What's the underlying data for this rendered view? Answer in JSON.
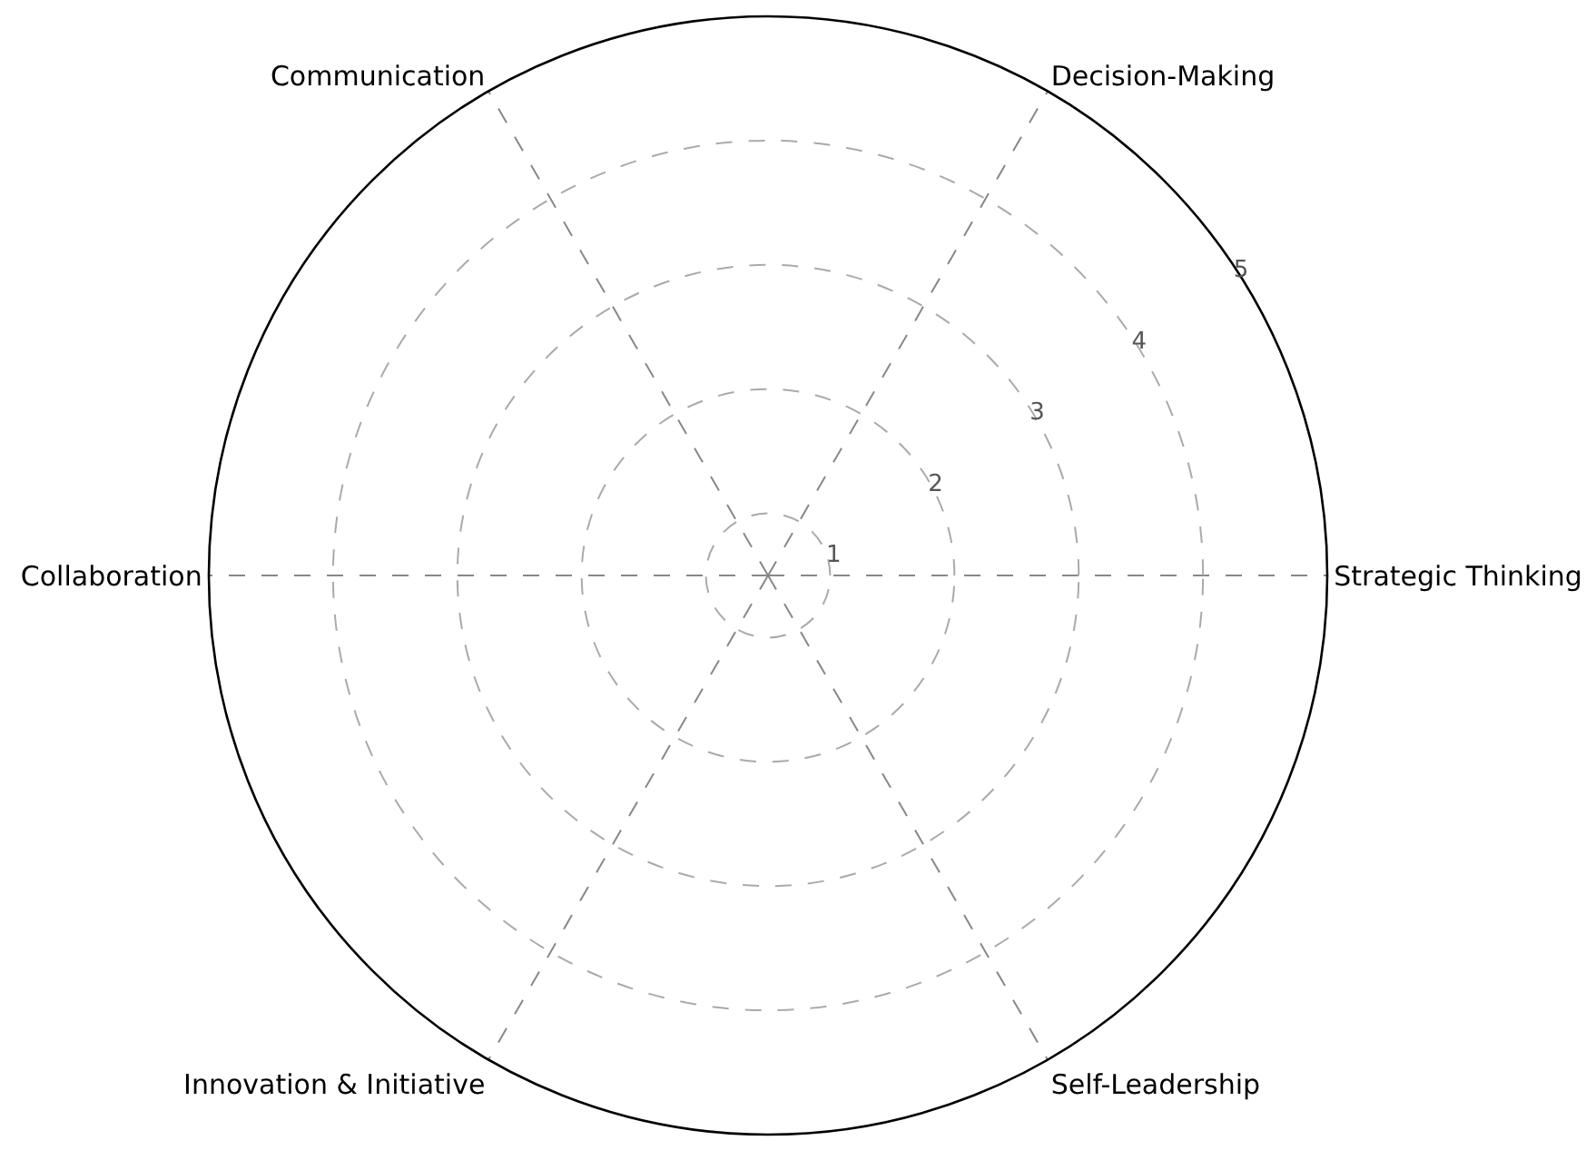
{
  "chart_data": {
    "type": "radar",
    "categories": [
      "Decision-Making",
      "Strategic Thinking",
      "Self-Leadership",
      "Innovation & Initiative",
      "Collaboration",
      "Communication"
    ],
    "ylim": [
      0.5,
      5
    ],
    "yticks": [
      1,
      2,
      3,
      4,
      5
    ],
    "grid": true
  }
}
